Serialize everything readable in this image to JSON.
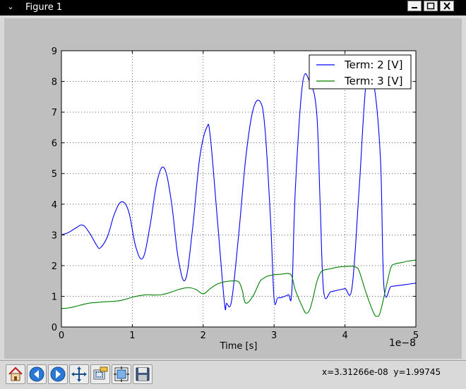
{
  "window": {
    "title": "Figure 1"
  },
  "toolbar": {
    "buttons": [
      {
        "name": "home-button",
        "icon": "home-icon"
      },
      {
        "name": "back-button",
        "icon": "back-arrow-icon"
      },
      {
        "name": "forward-button",
        "icon": "forward-arrow-icon"
      },
      {
        "name": "pan-button",
        "icon": "pan-icon"
      },
      {
        "name": "zoom-button",
        "icon": "zoom-rect-icon"
      },
      {
        "name": "subplots-button",
        "icon": "subplots-icon"
      },
      {
        "name": "save-button",
        "icon": "save-icon"
      }
    ],
    "coords_x": "x=3.31266e-08",
    "coords_y": "y=1.99745"
  },
  "colors": {
    "blue_series": "#0000ff",
    "green_series": "#008000"
  },
  "chart_data": {
    "type": "line",
    "title": "",
    "xlabel": "Time [s]",
    "ylabel": "",
    "x_offset_label": "1e−8",
    "xlim": [
      0,
      5
    ],
    "ylim": [
      0,
      9
    ],
    "xticks": [
      0,
      1,
      2,
      3,
      4,
      5
    ],
    "xtick_labels": [
      "0",
      "1",
      "2",
      "3",
      "4",
      "5"
    ],
    "yticks": [
      0,
      1,
      2,
      3,
      4,
      5,
      6,
      7,
      8,
      9
    ],
    "ytick_labels": [
      "0",
      "1",
      "2",
      "3",
      "4",
      "5",
      "6",
      "7",
      "8",
      "9"
    ],
    "grid": true,
    "legend_position": "top-right",
    "series": [
      {
        "name": "Term: 2 [V]",
        "color": "#0000ff",
        "x": [
          0,
          0.1,
          0.2,
          0.3,
          0.4,
          0.5,
          0.55,
          0.65,
          0.75,
          0.85,
          0.95,
          1.05,
          1.15,
          1.25,
          1.35,
          1.45,
          1.55,
          1.65,
          1.75,
          1.85,
          1.95,
          2.05,
          2.1,
          2.2,
          2.3,
          2.33,
          2.4,
          2.5,
          2.6,
          2.7,
          2.8,
          2.87,
          2.95,
          3.0,
          3.05,
          3.1,
          3.2,
          3.25,
          3.3,
          3.4,
          3.5,
          3.6,
          3.65,
          3.7,
          3.8,
          3.9,
          4.0,
          4.1,
          4.2,
          4.3,
          4.4,
          4.5,
          4.55,
          4.65,
          4.75,
          4.85,
          5.0
        ],
        "values": [
          3.0,
          3.08,
          3.22,
          3.32,
          3.05,
          2.65,
          2.58,
          2.95,
          3.7,
          4.08,
          3.75,
          2.6,
          2.25,
          3.3,
          4.75,
          5.18,
          4.1,
          2.2,
          1.55,
          3.2,
          5.5,
          6.5,
          6.2,
          3.5,
          0.78,
          0.77,
          0.85,
          3.0,
          5.5,
          7.05,
          7.35,
          6.5,
          3.5,
          0.93,
          0.95,
          0.96,
          1.05,
          1.15,
          4.5,
          7.9,
          8.0,
          7.0,
          4.0,
          1.15,
          1.15,
          1.2,
          1.25,
          1.3,
          4.5,
          8.0,
          8.0,
          5.5,
          1.3,
          1.32,
          1.35,
          1.38,
          1.43
        ]
      },
      {
        "name": "Term: 3 [V]",
        "color": "#008000",
        "x": [
          0,
          0.1,
          0.2,
          0.3,
          0.4,
          0.5,
          0.6,
          0.7,
          0.8,
          0.9,
          1.0,
          1.1,
          1.2,
          1.3,
          1.4,
          1.5,
          1.6,
          1.7,
          1.8,
          1.9,
          2.0,
          2.1,
          2.2,
          2.3,
          2.4,
          2.5,
          2.55,
          2.6,
          2.7,
          2.8,
          2.85,
          2.9,
          3.0,
          3.1,
          3.2,
          3.25,
          3.3,
          3.4,
          3.45,
          3.5,
          3.55,
          3.6,
          3.65,
          3.7,
          3.8,
          3.9,
          4.0,
          4.1,
          4.15,
          4.2,
          4.3,
          4.4,
          4.45,
          4.5,
          4.6,
          4.65,
          4.7,
          4.8,
          4.9,
          5.0
        ],
        "values": [
          0.6,
          0.62,
          0.67,
          0.73,
          0.78,
          0.8,
          0.82,
          0.83,
          0.85,
          0.9,
          0.97,
          1.02,
          1.05,
          1.04,
          1.05,
          1.1,
          1.18,
          1.25,
          1.28,
          1.22,
          1.08,
          1.25,
          1.4,
          1.47,
          1.5,
          1.47,
          1.2,
          0.78,
          1.0,
          1.48,
          1.58,
          1.65,
          1.7,
          1.72,
          1.74,
          1.65,
          1.2,
          0.65,
          0.45,
          0.55,
          0.95,
          1.45,
          1.75,
          1.85,
          1.9,
          1.95,
          1.97,
          1.98,
          1.95,
          1.82,
          1.1,
          0.48,
          0.35,
          0.5,
          1.5,
          1.95,
          2.05,
          2.1,
          2.15,
          2.18
        ]
      }
    ]
  }
}
